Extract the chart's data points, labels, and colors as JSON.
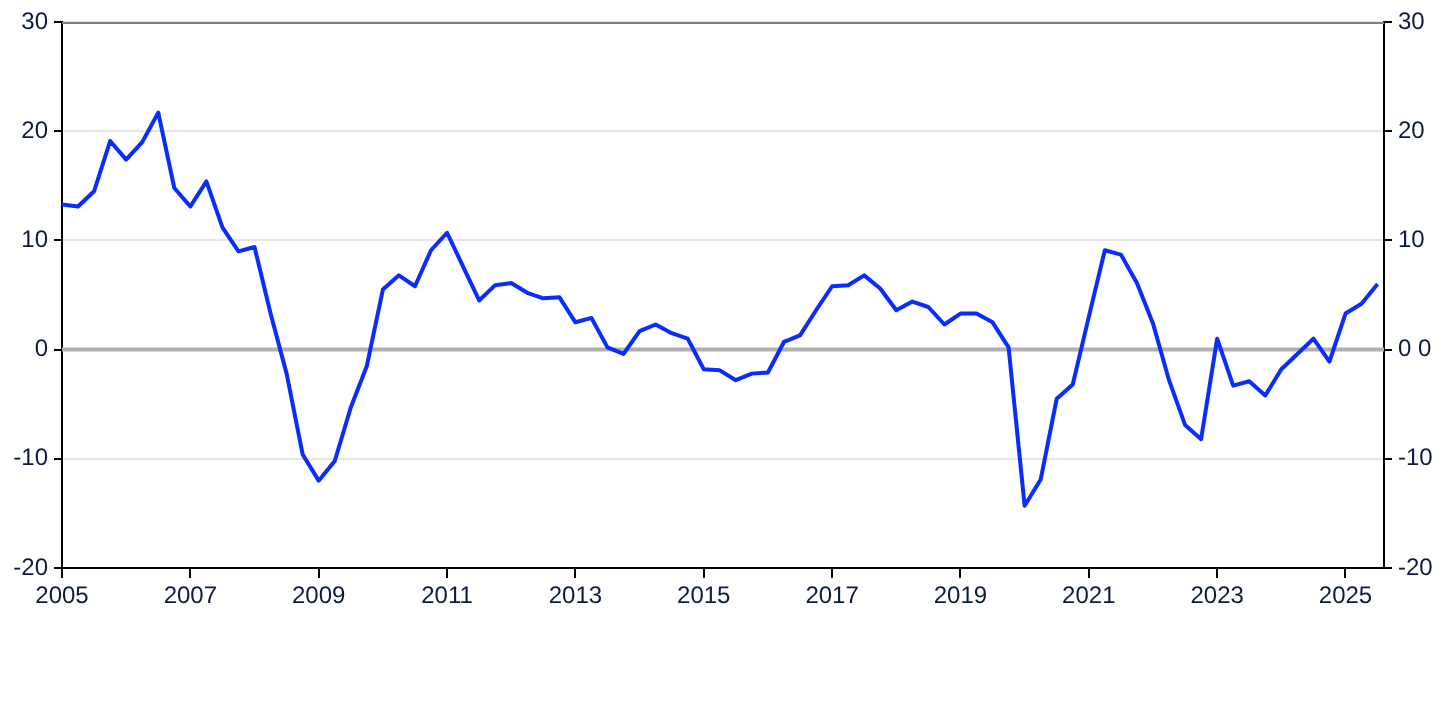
{
  "chart_data": {
    "type": "line",
    "x": [
      2005,
      2005.25,
      2005.5,
      2005.75,
      2006,
      2006.25,
      2006.5,
      2006.75,
      2007,
      2007.25,
      2007.5,
      2007.75,
      2008,
      2008.25,
      2008.5,
      2008.75,
      2009,
      2009.25,
      2009.5,
      2009.75,
      2010,
      2010.25,
      2010.5,
      2010.75,
      2011,
      2011.25,
      2011.5,
      2011.75,
      2012,
      2012.25,
      2012.5,
      2012.75,
      2013,
      2013.25,
      2013.5,
      2013.75,
      2014,
      2014.25,
      2014.5,
      2014.75,
      2015,
      2015.25,
      2015.5,
      2015.75,
      2016,
      2016.25,
      2016.5,
      2016.75,
      2017,
      2017.25,
      2017.5,
      2017.75,
      2018,
      2018.25,
      2018.5,
      2018.75,
      2019,
      2019.25,
      2019.5,
      2019.75,
      2020,
      2020.25,
      2020.5,
      2020.75,
      2021,
      2021.25,
      2021.5,
      2021.75,
      2022,
      2022.25,
      2022.5,
      2022.75,
      2023,
      2023.25,
      2023.5,
      2023.75,
      2024,
      2024.25,
      2024.5,
      2024.75,
      2025,
      2025.25,
      2025.5
    ],
    "series": [
      {
        "color": "#0a2cff",
        "values": [
          13.3,
          13.1,
          14.5,
          19.1,
          17.4,
          19.0,
          21.7,
          14.8,
          13.1,
          15.4,
          11.2,
          9.0,
          9.4,
          3.3,
          -2.2,
          -9.6,
          -12.0,
          -10.2,
          -5.3,
          -1.5,
          5.5,
          6.8,
          5.8,
          9.1,
          10.7,
          7.6,
          4.5,
          5.9,
          6.1,
          5.2,
          4.7,
          4.8,
          2.5,
          2.9,
          0.2,
          -0.4,
          1.7,
          2.3,
          1.5,
          1.0,
          -1.8,
          -1.9,
          -2.8,
          -2.2,
          -2.1,
          0.7,
          1.3,
          3.6,
          5.8,
          5.9,
          6.8,
          5.6,
          3.6,
          4.4,
          3.9,
          2.3,
          3.3,
          3.3,
          2.5,
          0.2,
          -14.3,
          -11.9,
          -4.5,
          -3.2,
          3.0,
          9.1,
          8.7,
          6.1,
          2.4,
          -2.8,
          -6.9,
          -8.2,
          1.0,
          -3.3,
          -2.9,
          -4.2,
          -1.8,
          -0.4,
          1.0,
          -1.1,
          3.3,
          4.2,
          6.0
        ]
      }
    ],
    "xlim": [
      2005,
      2025.6
    ],
    "xticks": [
      2005,
      2007,
      2009,
      2011,
      2013,
      2015,
      2017,
      2019,
      2021,
      2023,
      2025
    ],
    "ylim": [
      -20,
      30
    ],
    "yticks": [
      -20,
      -10,
      0,
      10,
      20,
      30
    ],
    "y2lim": [
      -20,
      30
    ],
    "y2ticks": [
      -20,
      -10,
      {
        "value": 0,
        "label": "0 0"
      },
      10,
      20,
      30
    ],
    "ref_lines": [
      {
        "axis": "y",
        "value": 0,
        "color": "#b0b0b0"
      }
    ],
    "grid": "y",
    "legend": false,
    "marker": "none",
    "line_style": "solid"
  }
}
